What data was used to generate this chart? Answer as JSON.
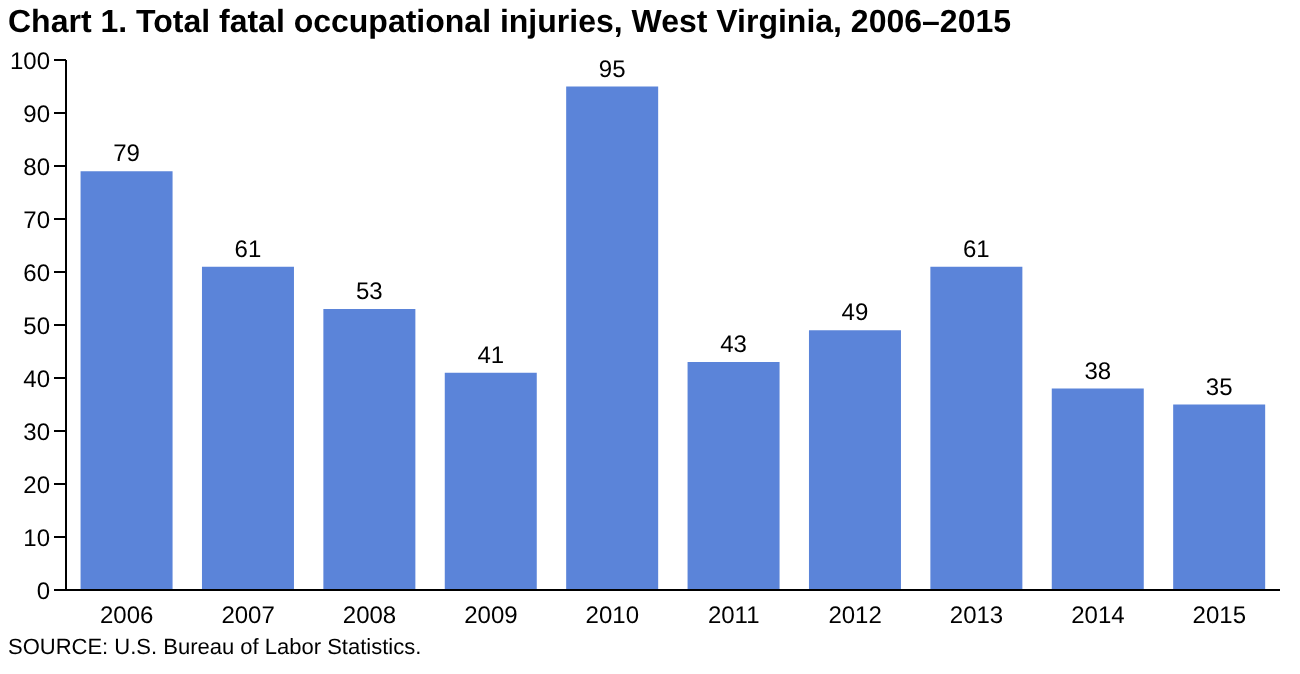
{
  "chart_data": {
    "type": "bar",
    "title": "Chart 1. Total fatal occupational injuries, West Virginia, 2006–2015",
    "categories": [
      "2006",
      "2007",
      "2008",
      "2009",
      "2010",
      "2011",
      "2012",
      "2013",
      "2014",
      "2015"
    ],
    "values": [
      79,
      61,
      53,
      41,
      95,
      43,
      49,
      61,
      38,
      35
    ],
    "color": "#5b84d9",
    "ylim": [
      0,
      100
    ],
    "yticks": [
      0,
      10,
      20,
      30,
      40,
      50,
      60,
      70,
      80,
      90,
      100
    ],
    "grid": false,
    "legend": false,
    "data_labels": true,
    "annotations": [
      "SOURCE: U.S. Bureau of Labor Statistics."
    ]
  }
}
